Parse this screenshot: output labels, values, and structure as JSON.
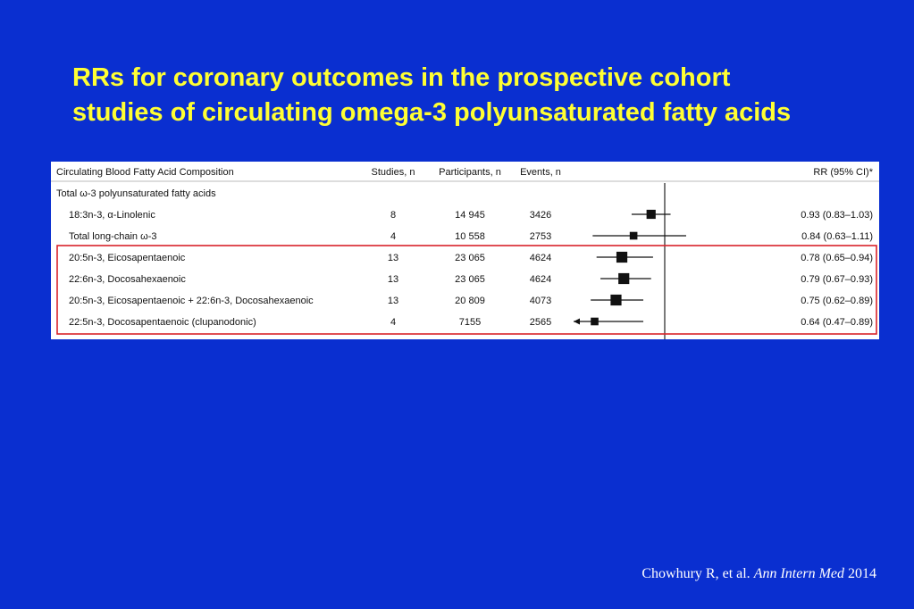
{
  "title": {
    "line1": "RRs for coronary outcomes in the prospective cohort",
    "line2": "studies of circulating omega-3 polyunsaturated fatty acids"
  },
  "colors": {
    "background": "#0a2fd0",
    "title": "#ffff33",
    "highlight_box": "#d9232a"
  },
  "chart_data": {
    "type": "forest",
    "headers": {
      "composition": "Circulating Blood Fatty Acid Composition",
      "studies": "Studies, n",
      "participants": "Participants, n",
      "events": "Events, n",
      "rr": "RR (95% CI)*"
    },
    "reference_line": 1.0,
    "rows": [
      {
        "label": "Total ω-3 polyunsaturated fatty acids",
        "indent": 0,
        "studies": "",
        "participants": "",
        "events": "",
        "rr_text": "",
        "rr": null,
        "lo": null,
        "hi": null
      },
      {
        "label": "18:3n-3, α-Linolenic",
        "indent": 1,
        "studies": "8",
        "participants": "14 945",
        "events": "3426",
        "rr_text": "0.93 (0.83–1.03)",
        "rr": 0.93,
        "lo": 0.83,
        "hi": 1.03
      },
      {
        "label": "Total long-chain ω-3",
        "indent": 1,
        "studies": "4",
        "participants": "10 558",
        "events": "2753",
        "rr_text": "0.84 (0.63–1.11)",
        "rr": 0.84,
        "lo": 0.63,
        "hi": 1.11
      },
      {
        "label": "20:5n-3, Eicosapentaenoic",
        "indent": 1,
        "studies": "13",
        "participants": "23 065",
        "events": "4624",
        "rr_text": "0.78 (0.65–0.94)",
        "rr": 0.78,
        "lo": 0.65,
        "hi": 0.94
      },
      {
        "label": "22:6n-3, Docosahexaenoic",
        "indent": 1,
        "studies": "13",
        "participants": "23 065",
        "events": "4624",
        "rr_text": "0.79 (0.67–0.93)",
        "rr": 0.79,
        "lo": 0.67,
        "hi": 0.93
      },
      {
        "label": "20:5n-3, Eicosapentaenoic + 22:6n-3, Docosahexaenoic",
        "indent": 1,
        "studies": "13",
        "participants": "20 809",
        "events": "4073",
        "rr_text": "0.75 (0.62–0.89)",
        "rr": 0.75,
        "lo": 0.62,
        "hi": 0.89
      },
      {
        "label": "22:5n-3, Docosapentaenoic (clupanodonic)",
        "indent": 1,
        "studies": "4",
        "participants": "7155",
        "events": "2565",
        "rr_text": "0.64 (0.47–0.89)",
        "rr": 0.64,
        "lo": 0.47,
        "hi": 0.89
      }
    ],
    "highlighted_rows": [
      3,
      4,
      5,
      6
    ]
  },
  "citation": {
    "authors": "Chowhury R, et al.",
    "journal": "Ann Intern Med",
    "year": "2014"
  }
}
